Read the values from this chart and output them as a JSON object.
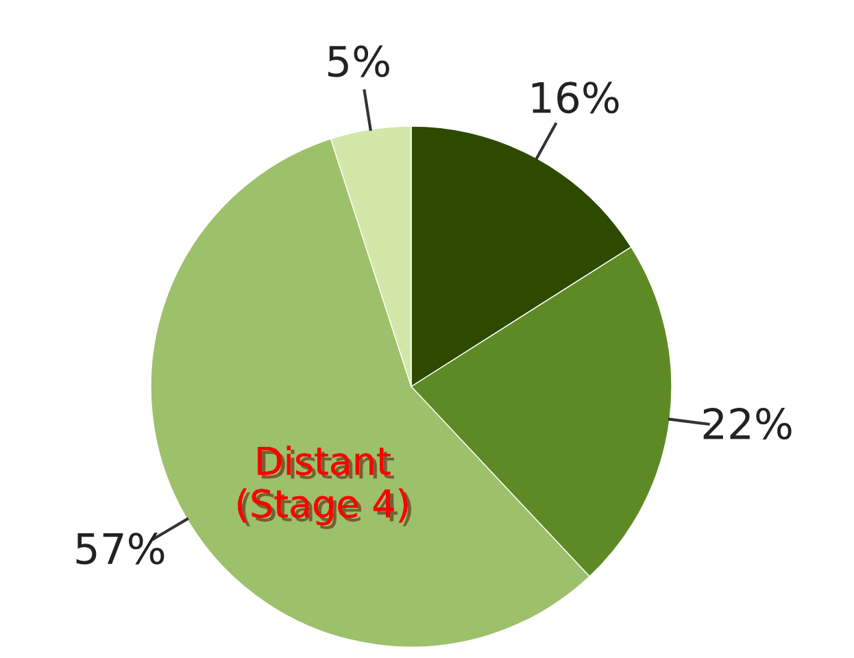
{
  "chart_data": {
    "type": "pie",
    "categories": [
      null,
      null,
      null,
      null
    ],
    "values": [
      16,
      22,
      57,
      5
    ],
    "value_labels": [
      "16%",
      "22%",
      "57%",
      "5%"
    ],
    "colors": [
      "#2d4a00",
      "#5e8a25",
      "#9dc06a",
      "#d3e8a8"
    ],
    "annotations": [
      "Distant\n(Stage 4)"
    ]
  }
}
